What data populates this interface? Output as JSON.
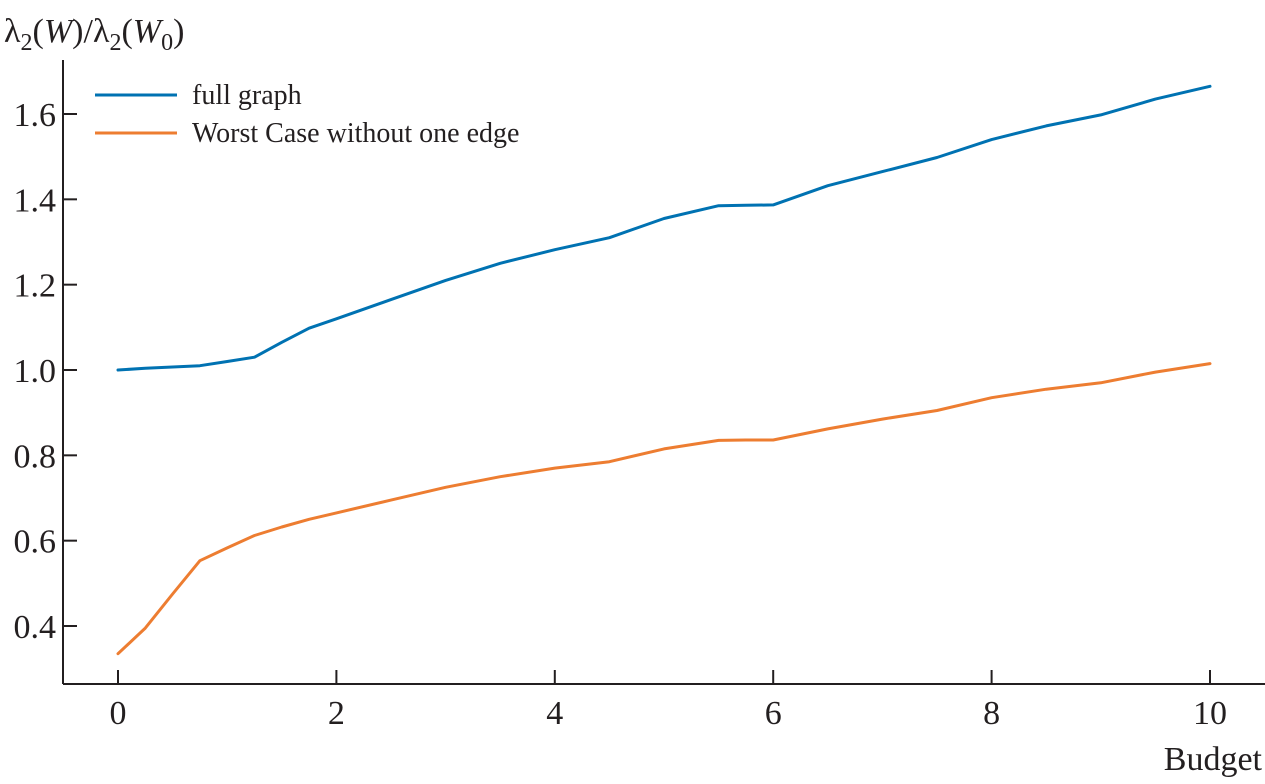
{
  "chart_data": {
    "type": "line",
    "xlabel": "Budget",
    "ylabel": "λ2(W)/λ2(W0)",
    "xlim": [
      -0.5,
      10.5
    ],
    "ylim": [
      0.31,
      1.75
    ],
    "xticks": [
      0,
      2,
      4,
      6,
      8,
      10
    ],
    "yticks": [
      0.4,
      0.6,
      0.8,
      1.0,
      1.2,
      1.4,
      1.6
    ],
    "xtick_labels": [
      "0",
      "2",
      "4",
      "6",
      "8",
      "10"
    ],
    "ytick_labels": [
      "0.4",
      "0.6",
      "0.8",
      "1.0",
      "1.2",
      "1.4",
      "1.6"
    ],
    "grid": false,
    "legend_position": "top-left",
    "series": [
      {
        "name": "full graph",
        "color": "#0072b2",
        "x": [
          0,
          0.25,
          0.5,
          0.75,
          1,
          1.25,
          1.5,
          1.75,
          2,
          2.5,
          3,
          3.5,
          4,
          4.5,
          5,
          5.5,
          5.75,
          6,
          6.5,
          7,
          7.5,
          8,
          8.5,
          9,
          9.5,
          10
        ],
        "y": [
          1.0,
          1.004,
          1.007,
          1.01,
          1.02,
          1.03,
          1.065,
          1.098,
          1.12,
          1.165,
          1.21,
          1.25,
          1.282,
          1.31,
          1.355,
          1.385,
          1.386,
          1.387,
          1.432,
          1.465,
          1.498,
          1.54,
          1.572,
          1.598,
          1.635,
          1.665
        ]
      },
      {
        "name": "Worst Case without one edge",
        "color": "#ed7d31",
        "x": [
          0,
          0.25,
          0.5,
          0.75,
          1,
          1.25,
          1.5,
          1.75,
          2,
          2.5,
          3,
          3.5,
          4,
          4.5,
          5,
          5.5,
          5.75,
          6,
          6.5,
          7,
          7.5,
          8,
          8.5,
          9,
          9.5,
          10
        ],
        "y": [
          0.335,
          0.395,
          0.475,
          0.553,
          0.583,
          0.612,
          0.632,
          0.65,
          0.665,
          0.695,
          0.725,
          0.75,
          0.77,
          0.785,
          0.815,
          0.835,
          0.836,
          0.836,
          0.862,
          0.885,
          0.905,
          0.935,
          0.955,
          0.97,
          0.995,
          1.015
        ]
      }
    ]
  }
}
